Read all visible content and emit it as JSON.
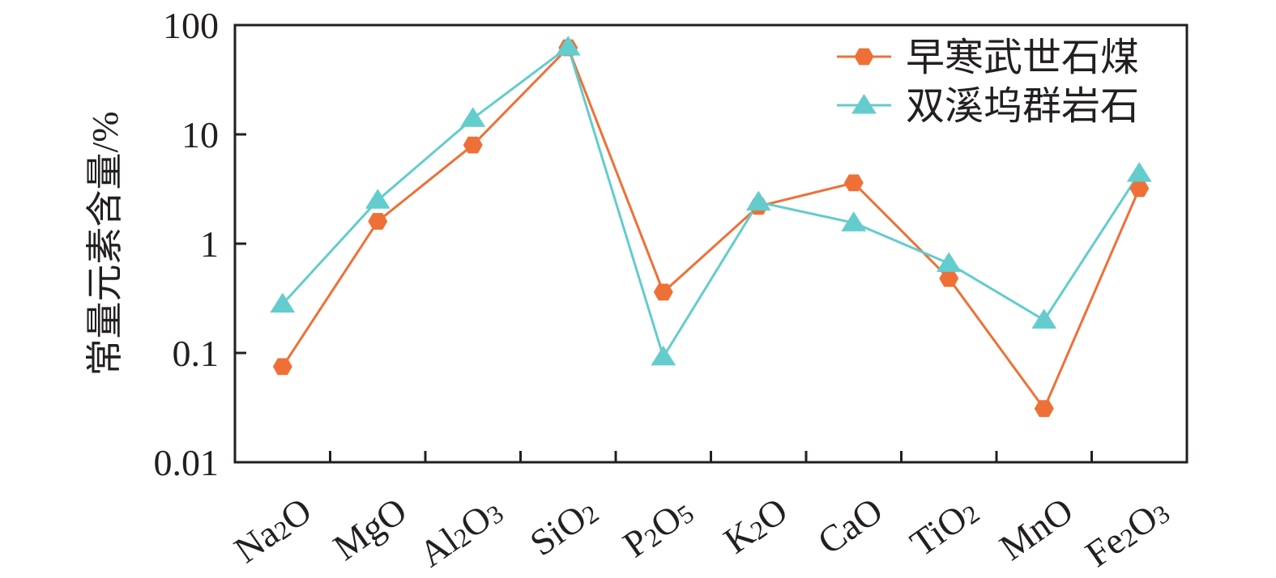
{
  "chart_data": {
    "type": "line",
    "ylabel": "常量元素含量/%",
    "yscale": "log",
    "ylim": [
      0.01,
      100
    ],
    "yticks": [
      "0.01",
      "0.1",
      "1",
      "10",
      "100"
    ],
    "categories": [
      {
        "label": "Na2O",
        "base": "Na",
        "sub1": "2",
        "mid": "O",
        "sub2": ""
      },
      {
        "label": "MgO",
        "base": "MgO",
        "sub1": "",
        "mid": "",
        "sub2": ""
      },
      {
        "label": "Al2O3",
        "base": "Al",
        "sub1": "2",
        "mid": "O",
        "sub2": "3"
      },
      {
        "label": "SiO2",
        "base": "SiO",
        "sub1": "2",
        "mid": "",
        "sub2": ""
      },
      {
        "label": "P2O5",
        "base": "P",
        "sub1": "2",
        "mid": "O",
        "sub2": "5"
      },
      {
        "label": "K2O",
        "base": "K",
        "sub1": "2",
        "mid": "O",
        "sub2": ""
      },
      {
        "label": "CaO",
        "base": "CaO",
        "sub1": "",
        "mid": "",
        "sub2": ""
      },
      {
        "label": "TiO2",
        "base": "TiO",
        "sub1": "2",
        "mid": "",
        "sub2": ""
      },
      {
        "label": "MnO",
        "base": "MnO",
        "sub1": "",
        "mid": "",
        "sub2": ""
      },
      {
        "label": "Fe2O3",
        "base": "Fe",
        "sub1": "2",
        "mid": "O",
        "sub2": "3"
      }
    ],
    "series": [
      {
        "name": "早寒武世石煤",
        "color": "#ee7036",
        "marker": "hexagon",
        "values": [
          0.075,
          1.6,
          8.0,
          62,
          0.36,
          2.2,
          3.6,
          0.48,
          0.031,
          3.2
        ]
      },
      {
        "name": "双溪坞群岩石",
        "color": "#63cccd",
        "marker": "triangle",
        "values": [
          0.28,
          2.5,
          14,
          63,
          0.092,
          2.4,
          1.55,
          0.66,
          0.2,
          4.4
        ]
      }
    ],
    "legend": "top-right",
    "grid": false
  }
}
